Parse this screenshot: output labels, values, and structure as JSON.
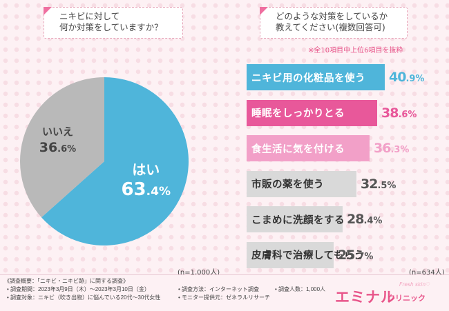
{
  "question_left": {
    "line1": "ニキビに対して",
    "line2": "何か対策をしていますか？"
  },
  "question_right": {
    "line1": "どのような対策をしているか",
    "line2": "教えてください(複数回答可)"
  },
  "note_right": "※全10項目中上位6項目を抜粋",
  "n_left": "(n=1,000人)",
  "n_right": "(n=634人)",
  "colors": {
    "blue": "#4fb5da",
    "gray": "#b9b9b9",
    "pink": "#e8589a",
    "pink_light": "#f2a0c8",
    "light_gray": "#d9d9d9"
  },
  "chart_data": [
    {
      "type": "pie",
      "title": "ニキビに対して何か対策をしていますか？",
      "slices": [
        {
          "label": "はい",
          "value": 63.4,
          "value_int": "63",
          "value_dec": ".4%",
          "color": "#4fb5da",
          "text_color": "#ffffff"
        },
        {
          "label": "いいえ",
          "value": 36.6,
          "value_int": "36",
          "value_dec": ".6%",
          "color": "#b9b9b9",
          "text_color": "#444444"
        }
      ]
    },
    {
      "type": "bar",
      "orientation": "horizontal",
      "title": "どのような対策をしているか教えてください(複数回答可)",
      "categories": [
        "ニキビ用の化粧品を使う",
        "睡眠をしっかりとる",
        "食生活に気を付ける",
        "市販の薬を使う",
        "こまめに洗顔をする",
        "皮膚科で治療してもらう"
      ],
      "values": [
        40.9,
        38.6,
        36.3,
        32.5,
        28.4,
        25.7
      ],
      "value_int": [
        "40",
        "38",
        "36",
        "32",
        "28",
        "25"
      ],
      "value_dec": [
        ".9%",
        ".6%",
        ".3%",
        ".5%",
        ".4%",
        ".7%"
      ],
      "bar_colors": [
        "#4fb5da",
        "#e8589a",
        "#f2a0c8",
        "#d9d9d9",
        "#d9d9d9",
        "#d9d9d9"
      ],
      "label_colors": [
        "#ffffff",
        "#ffffff",
        "#ffffff",
        "#333333",
        "#333333",
        "#333333"
      ],
      "value_colors": [
        "#4fb5da",
        "#e8589a",
        "#f2a0c8",
        "#555555",
        "#555555",
        "#555555"
      ],
      "xlim": [
        0,
        40.9
      ]
    }
  ],
  "footer": {
    "survey_title": "《調査概要：「ニキビ・ニキビ跡」に関する調査》",
    "period": "• 調査期間：2023年3月9日（木）〜2023年3月10日（金）",
    "method": "• 調査方法：インターネット調査",
    "count": "• 調査人数：1,000人",
    "target": "• 調査対象：ニキビ（吹き出物）に悩んでいる20代〜30代女性",
    "provider": "• モニター提供元：ゼネラルリサーチ"
  },
  "logo": {
    "name": "エミナル",
    "sub": "クリニック",
    "tag": "Fresh skin♡"
  }
}
